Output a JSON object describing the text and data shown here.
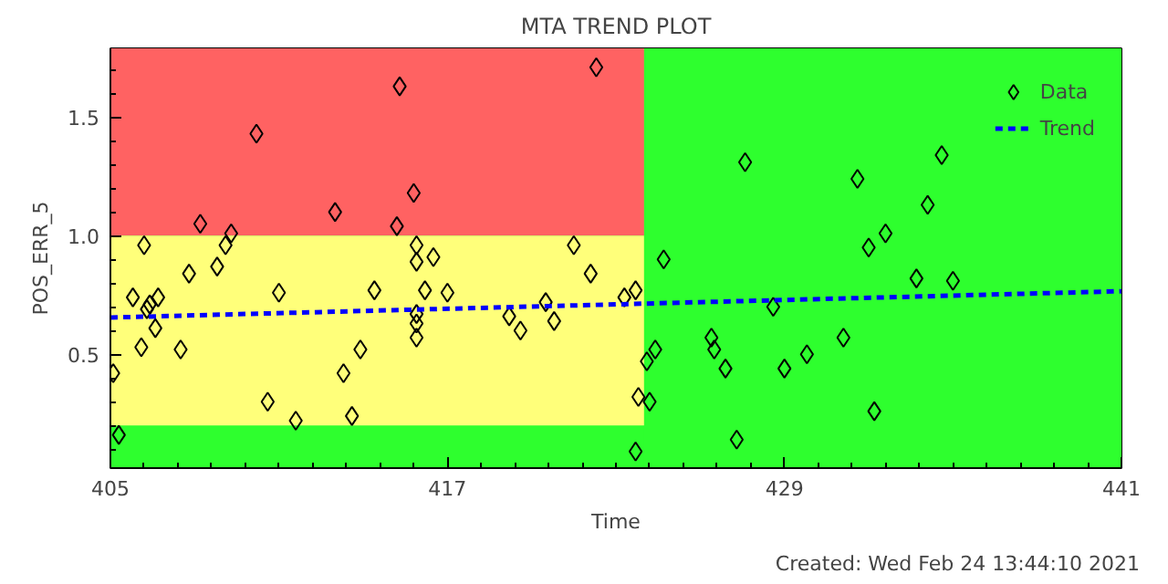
{
  "chart_data": {
    "type": "scatter",
    "title": "MTA TREND PLOT",
    "xlabel": "Time",
    "ylabel": "POS_ERR_5",
    "annotations": [
      "Created: Wed Feb 24 13:44:10 2021"
    ],
    "xlim": [
      405,
      441
    ],
    "ylim": [
      0.02,
      1.79
    ],
    "xticks": [
      405,
      417,
      429,
      441
    ],
    "yticks": [
      0.5,
      {
        "value": 1.0,
        "label": "1.0"
      },
      1.5
    ],
    "legend": "top right",
    "bands": [
      {
        "axis": "y",
        "from": 0.02,
        "to": 1.79,
        "color": "#2eff2e"
      },
      {
        "axis": "y",
        "from": 1.0,
        "to": 1.79,
        "color": "#ff6262"
      },
      {
        "axis": "y",
        "from": 0.2,
        "to": 1.0,
        "color": "#ffff7a"
      },
      {
        "axis": "x",
        "from": 424,
        "to": 441,
        "color": "#2eff2e"
      }
    ],
    "series": [
      {
        "name": "Data",
        "color": "#000000",
        "marker": "diamond",
        "x": [
          406.2,
          408.2,
          407.8,
          408.8,
          409.1,
          409.3,
          410.2,
          413.0,
          415.3,
          415.2,
          415.8,
          415.9,
          415.9,
          416.5,
          421.5,
          422.3,
          422.1,
          427.6,
          424.7,
          431.6,
          434.6,
          434.1,
          432.6,
          432.0,
          405.8,
          406.7,
          406.4,
          406.3,
          406.6,
          406.1,
          405.1,
          405.3,
          407.5,
          411.0,
          410.6,
          411.6,
          413.3,
          413.6,
          413.9,
          414.4,
          416.2,
          417.0,
          415.9,
          415.9,
          415.9,
          419.2,
          419.6,
          420.5,
          420.8,
          423.3,
          423.7,
          428.6,
          433.7,
          435.0,
          426.4,
          426.5,
          424.1,
          424.4,
          426.9,
          429.0,
          429.8,
          431.1,
          423.8,
          424.2,
          432.2,
          427.3,
          423.7
        ],
        "values": [
          0.96,
          1.05,
          0.84,
          0.87,
          0.96,
          1.01,
          1.43,
          1.1,
          1.63,
          1.04,
          1.18,
          0.96,
          0.89,
          0.91,
          0.96,
          1.71,
          0.84,
          1.31,
          0.9,
          1.24,
          1.34,
          1.13,
          1.01,
          0.95,
          0.74,
          0.74,
          0.71,
          0.69,
          0.61,
          0.53,
          0.42,
          0.16,
          0.52,
          0.76,
          0.3,
          0.22,
          0.42,
          0.24,
          0.52,
          0.77,
          0.77,
          0.76,
          0.67,
          0.63,
          0.57,
          0.66,
          0.6,
          0.72,
          0.64,
          0.74,
          0.77,
          0.7,
          0.82,
          0.81,
          0.57,
          0.52,
          0.47,
          0.52,
          0.44,
          0.44,
          0.5,
          0.57,
          0.32,
          0.3,
          0.26,
          0.14,
          0.09
        ]
      },
      {
        "name": "Trend",
        "type": "line",
        "color": "#0000ff",
        "marker": "none",
        "line_style": "dashed",
        "x": [
          405,
          441
        ],
        "values": [
          0.655,
          0.766
        ]
      }
    ]
  }
}
